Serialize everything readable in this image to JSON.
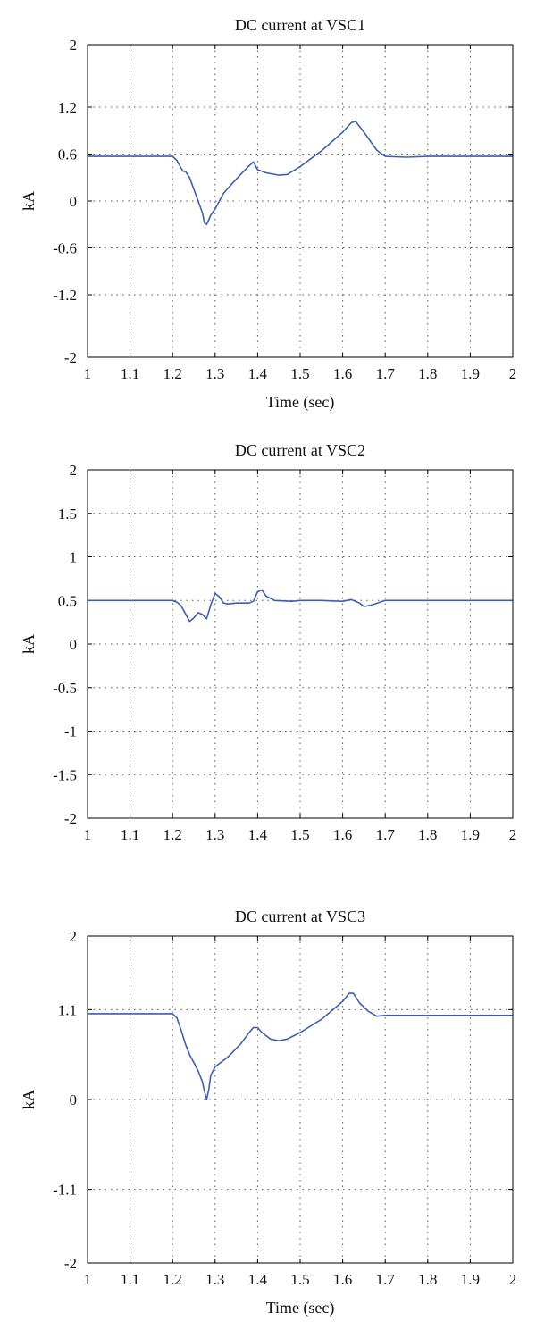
{
  "chart_data": [
    {
      "type": "line",
      "title": "DC current at VSC1",
      "xlabel": "Time (sec)",
      "ylabel": "kA",
      "xlim": [
        1,
        2
      ],
      "ylim": [
        -2,
        2
      ],
      "xticks": [
        1,
        1.1,
        1.2,
        1.3,
        1.4,
        1.5,
        1.6,
        1.7,
        1.8,
        1.9,
        2
      ],
      "xtick_labels": [
        "1",
        "1.1",
        "1.2",
        "1.3",
        "1.4",
        "1.5",
        "1.6",
        "1.7",
        "1.8",
        "1.9",
        "2"
      ],
      "yticks": [
        -2,
        -1.2,
        -0.6,
        0,
        0.6,
        1.2,
        2
      ],
      "ytick_labels": [
        "-2",
        "-1.2",
        "-0.6",
        "0",
        "0.6",
        "1.2",
        "2"
      ],
      "grid": true,
      "line_color": "#3a5fb5",
      "series": [
        {
          "x": [
            1.0,
            1.2,
            1.21,
            1.22,
            1.225,
            1.23,
            1.24,
            1.25,
            1.26,
            1.27,
            1.275,
            1.28,
            1.285,
            1.29,
            1.3,
            1.31,
            1.32,
            1.34,
            1.36,
            1.38,
            1.39,
            1.4,
            1.42,
            1.45,
            1.47,
            1.5,
            1.55,
            1.6,
            1.62,
            1.63,
            1.65,
            1.68,
            1.7,
            1.75,
            1.8,
            1.9,
            2.0
          ],
          "y": [
            0.57,
            0.57,
            0.52,
            0.42,
            0.38,
            0.38,
            0.3,
            0.15,
            0.0,
            -0.15,
            -0.28,
            -0.3,
            -0.24,
            -0.18,
            -0.1,
            0.0,
            0.1,
            0.22,
            0.34,
            0.45,
            0.5,
            0.4,
            0.36,
            0.33,
            0.34,
            0.44,
            0.64,
            0.88,
            1.0,
            1.02,
            0.88,
            0.65,
            0.57,
            0.56,
            0.57,
            0.57,
            0.57
          ]
        }
      ]
    },
    {
      "type": "line",
      "title": "DC current at VSC2",
      "xlabel": "Time (sec)",
      "ylabel": "kA",
      "xlim": [
        1,
        2
      ],
      "ylim": [
        -2,
        2
      ],
      "xticks": [
        1,
        1.1,
        1.2,
        1.3,
        1.4,
        1.5,
        1.6,
        1.7,
        1.8,
        1.9,
        2
      ],
      "xtick_labels": [
        "1",
        "1.1",
        "1.2",
        "1.3",
        "1.4",
        "1.5",
        "1.6",
        "1.7",
        "1.8",
        "1.9",
        "2"
      ],
      "yticks": [
        -2,
        -1.5,
        -1,
        -0.5,
        0,
        0.5,
        1,
        1.5,
        2
      ],
      "ytick_labels": [
        "-2",
        "-1.5",
        "-1",
        "-0.5",
        "0",
        "0.5",
        "1",
        "1.5",
        "2"
      ],
      "grid": true,
      "line_color": "#3a5fb5",
      "series": [
        {
          "x": [
            1.0,
            1.2,
            1.21,
            1.22,
            1.23,
            1.24,
            1.25,
            1.26,
            1.27,
            1.28,
            1.29,
            1.3,
            1.31,
            1.32,
            1.33,
            1.35,
            1.38,
            1.39,
            1.4,
            1.41,
            1.42,
            1.44,
            1.48,
            1.5,
            1.55,
            1.6,
            1.62,
            1.64,
            1.65,
            1.67,
            1.7,
            1.8,
            2.0
          ],
          "y": [
            0.5,
            0.5,
            0.48,
            0.44,
            0.35,
            0.26,
            0.3,
            0.36,
            0.34,
            0.29,
            0.45,
            0.58,
            0.54,
            0.47,
            0.46,
            0.47,
            0.47,
            0.49,
            0.6,
            0.62,
            0.55,
            0.5,
            0.49,
            0.5,
            0.5,
            0.49,
            0.51,
            0.47,
            0.43,
            0.45,
            0.5,
            0.5,
            0.5
          ]
        }
      ]
    },
    {
      "type": "line",
      "title": "DC current at VSC3",
      "xlabel": "Time (sec)",
      "ylabel": "kA",
      "xlim": [
        1,
        2
      ],
      "ylim": [
        -2,
        2
      ],
      "xticks": [
        1,
        1.1,
        1.2,
        1.3,
        1.4,
        1.5,
        1.6,
        1.7,
        1.8,
        1.9,
        2
      ],
      "xtick_labels": [
        "1",
        "1.1",
        "1.2",
        "1.3",
        "1.4",
        "1.5",
        "1.6",
        "1.7",
        "1.8",
        "1.9",
        "2"
      ],
      "yticks": [
        -2,
        -1.1,
        0,
        1.1,
        2
      ],
      "ytick_labels": [
        "-2",
        "-1.1",
        "0",
        "1.1",
        "2"
      ],
      "grid": true,
      "line_color": "#3a5fb5",
      "series": [
        {
          "x": [
            1.0,
            1.2,
            1.21,
            1.22,
            1.23,
            1.24,
            1.25,
            1.26,
            1.27,
            1.275,
            1.28,
            1.285,
            1.29,
            1.3,
            1.31,
            1.33,
            1.36,
            1.38,
            1.39,
            1.4,
            1.41,
            1.43,
            1.45,
            1.47,
            1.5,
            1.55,
            1.6,
            1.615,
            1.625,
            1.64,
            1.66,
            1.68,
            1.7,
            1.75,
            1.8,
            1.9,
            2.0
          ],
          "y": [
            1.05,
            1.05,
            1.0,
            0.85,
            0.68,
            0.55,
            0.45,
            0.35,
            0.22,
            0.1,
            0.0,
            0.12,
            0.3,
            0.4,
            0.44,
            0.52,
            0.68,
            0.82,
            0.88,
            0.88,
            0.82,
            0.74,
            0.72,
            0.74,
            0.82,
            0.98,
            1.2,
            1.3,
            1.3,
            1.18,
            1.08,
            1.02,
            1.03,
            1.03,
            1.03,
            1.03,
            1.03
          ]
        }
      ]
    }
  ]
}
